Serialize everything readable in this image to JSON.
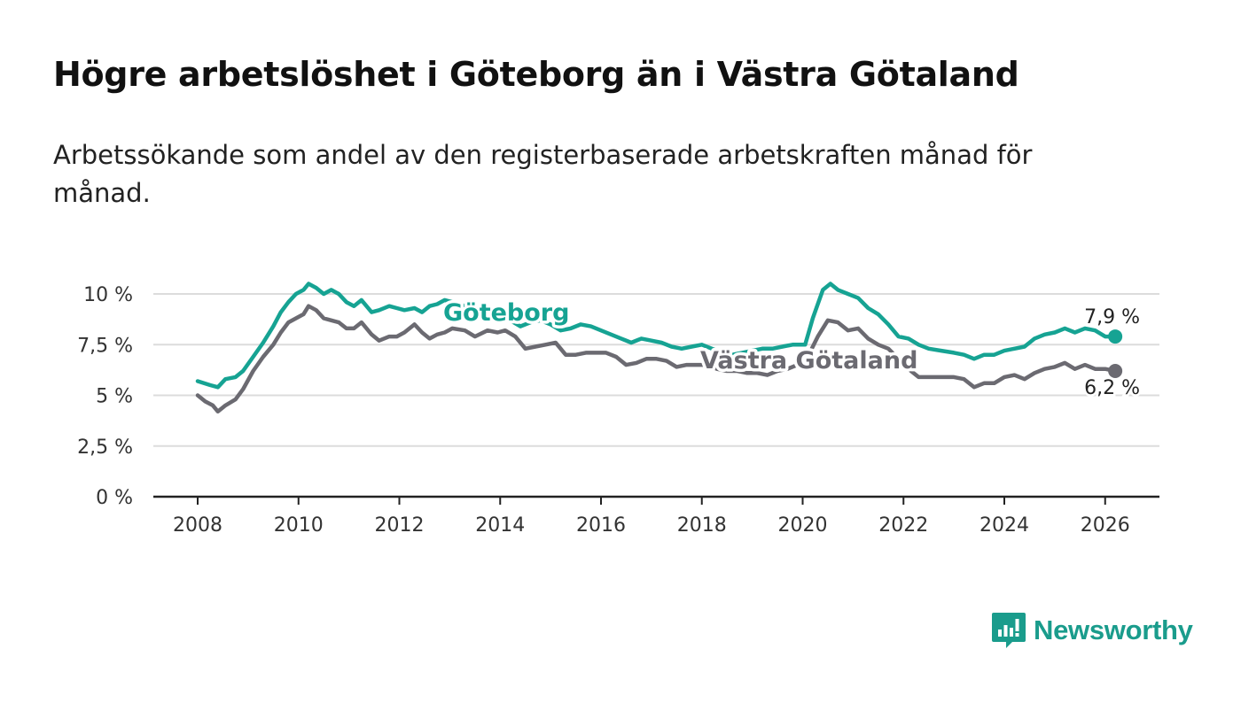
{
  "title": "Högre arbetslöshet i Göteborg än i Västra Götaland",
  "subtitle": "Arbetssökande som andel av den registerbaserade arbetskraften månad för månad.",
  "brand": {
    "name": "Newsworthy",
    "logo_icon": "bar-chart-speech-bubble-icon"
  },
  "colors": {
    "goteborg": "#16a393",
    "vastra": "#6b6a71",
    "grid": "#dcdcdc",
    "axis": "#222222"
  },
  "chart_data": {
    "type": "line",
    "title": "Högre arbetslöshet i Göteborg än i Västra Götaland",
    "xlabel": "",
    "ylabel": "",
    "xlim": [
      2007.6,
      2027.0
    ],
    "ylim": [
      0,
      10
    ],
    "x_ticks": [
      2008,
      2010,
      2012,
      2014,
      2016,
      2018,
      2020,
      2022,
      2024,
      2026
    ],
    "y_ticks": [
      {
        "value": 0,
        "label": "0 %"
      },
      {
        "value": 2.5,
        "label": "2,5 %"
      },
      {
        "value": 5,
        "label": "5 %"
      },
      {
        "value": 7.5,
        "label": "7,5 %"
      },
      {
        "value": 10,
        "label": "10 %"
      }
    ],
    "grid": true,
    "series": [
      {
        "name": "Göteborg",
        "label": "Göteborg",
        "end_label": "7,9 %",
        "points": [
          [
            2008.0,
            5.7
          ],
          [
            2008.25,
            5.5
          ],
          [
            2008.4,
            5.4
          ],
          [
            2008.55,
            5.8
          ],
          [
            2008.75,
            5.9
          ],
          [
            2008.9,
            6.2
          ],
          [
            2009.1,
            6.9
          ],
          [
            2009.3,
            7.6
          ],
          [
            2009.5,
            8.4
          ],
          [
            2009.65,
            9.1
          ],
          [
            2009.8,
            9.6
          ],
          [
            2009.95,
            10.0
          ],
          [
            2010.1,
            10.2
          ],
          [
            2010.2,
            10.5
          ],
          [
            2010.35,
            10.3
          ],
          [
            2010.5,
            10.0
          ],
          [
            2010.65,
            10.2
          ],
          [
            2010.8,
            10.0
          ],
          [
            2010.95,
            9.6
          ],
          [
            2011.1,
            9.4
          ],
          [
            2011.25,
            9.7
          ],
          [
            2011.45,
            9.1
          ],
          [
            2011.6,
            9.2
          ],
          [
            2011.8,
            9.4
          ],
          [
            2011.95,
            9.3
          ],
          [
            2012.1,
            9.2
          ],
          [
            2012.3,
            9.3
          ],
          [
            2012.45,
            9.1
          ],
          [
            2012.6,
            9.4
          ],
          [
            2012.75,
            9.5
          ],
          [
            2012.9,
            9.7
          ],
          [
            2013.05,
            9.6
          ],
          [
            2013.3,
            9.4
          ],
          [
            2013.6,
            9.2
          ],
          [
            2013.9,
            9.0
          ],
          [
            2014.2,
            8.7
          ],
          [
            2014.4,
            8.4
          ],
          [
            2014.6,
            8.6
          ],
          [
            2014.8,
            8.7
          ],
          [
            2015.0,
            8.5
          ],
          [
            2015.2,
            8.2
          ],
          [
            2015.4,
            8.3
          ],
          [
            2015.6,
            8.5
          ],
          [
            2015.8,
            8.4
          ],
          [
            2016.0,
            8.2
          ],
          [
            2016.2,
            8.0
          ],
          [
            2016.4,
            7.8
          ],
          [
            2016.6,
            7.6
          ],
          [
            2016.8,
            7.8
          ],
          [
            2017.0,
            7.7
          ],
          [
            2017.2,
            7.6
          ],
          [
            2017.4,
            7.4
          ],
          [
            2017.6,
            7.3
          ],
          [
            2017.8,
            7.4
          ],
          [
            2018.0,
            7.5
          ],
          [
            2018.2,
            7.3
          ],
          [
            2018.4,
            7.1
          ],
          [
            2018.6,
            7.0
          ],
          [
            2018.8,
            7.1
          ],
          [
            2019.0,
            7.2
          ],
          [
            2019.2,
            7.3
          ],
          [
            2019.4,
            7.3
          ],
          [
            2019.6,
            7.4
          ],
          [
            2019.8,
            7.5
          ],
          [
            2020.05,
            7.5
          ],
          [
            2020.2,
            8.8
          ],
          [
            2020.4,
            10.2
          ],
          [
            2020.55,
            10.5
          ],
          [
            2020.7,
            10.2
          ],
          [
            2020.9,
            10.0
          ],
          [
            2021.1,
            9.8
          ],
          [
            2021.3,
            9.3
          ],
          [
            2021.5,
            9.0
          ],
          [
            2021.7,
            8.5
          ],
          [
            2021.9,
            7.9
          ],
          [
            2022.1,
            7.8
          ],
          [
            2022.3,
            7.5
          ],
          [
            2022.5,
            7.3
          ],
          [
            2022.75,
            7.2
          ],
          [
            2023.0,
            7.1
          ],
          [
            2023.2,
            7.0
          ],
          [
            2023.4,
            6.8
          ],
          [
            2023.6,
            7.0
          ],
          [
            2023.8,
            7.0
          ],
          [
            2024.0,
            7.2
          ],
          [
            2024.2,
            7.3
          ],
          [
            2024.4,
            7.4
          ],
          [
            2024.6,
            7.8
          ],
          [
            2024.8,
            8.0
          ],
          [
            2025.0,
            8.1
          ],
          [
            2025.2,
            8.3
          ],
          [
            2025.4,
            8.1
          ],
          [
            2025.6,
            8.3
          ],
          [
            2025.8,
            8.2
          ],
          [
            2026.0,
            7.9
          ],
          [
            2026.2,
            7.9
          ]
        ]
      },
      {
        "name": "Västra Götaland",
        "label": "Västra Götaland",
        "end_label": "6,2 %",
        "points": [
          [
            2008.0,
            5.0
          ],
          [
            2008.15,
            4.7
          ],
          [
            2008.3,
            4.5
          ],
          [
            2008.4,
            4.2
          ],
          [
            2008.55,
            4.5
          ],
          [
            2008.75,
            4.8
          ],
          [
            2008.9,
            5.3
          ],
          [
            2009.1,
            6.2
          ],
          [
            2009.3,
            6.9
          ],
          [
            2009.5,
            7.5
          ],
          [
            2009.65,
            8.1
          ],
          [
            2009.8,
            8.6
          ],
          [
            2009.95,
            8.8
          ],
          [
            2010.1,
            9.0
          ],
          [
            2010.2,
            9.4
          ],
          [
            2010.35,
            9.2
          ],
          [
            2010.5,
            8.8
          ],
          [
            2010.65,
            8.7
          ],
          [
            2010.8,
            8.6
          ],
          [
            2010.95,
            8.3
          ],
          [
            2011.1,
            8.3
          ],
          [
            2011.25,
            8.6
          ],
          [
            2011.45,
            8.0
          ],
          [
            2011.6,
            7.7
          ],
          [
            2011.8,
            7.9
          ],
          [
            2011.95,
            7.9
          ],
          [
            2012.1,
            8.1
          ],
          [
            2012.3,
            8.5
          ],
          [
            2012.45,
            8.1
          ],
          [
            2012.6,
            7.8
          ],
          [
            2012.75,
            8.0
          ],
          [
            2012.9,
            8.1
          ],
          [
            2013.05,
            8.3
          ],
          [
            2013.3,
            8.2
          ],
          [
            2013.5,
            7.9
          ],
          [
            2013.75,
            8.2
          ],
          [
            2013.95,
            8.1
          ],
          [
            2014.1,
            8.2
          ],
          [
            2014.3,
            7.9
          ],
          [
            2014.5,
            7.3
          ],
          [
            2014.7,
            7.4
          ],
          [
            2014.9,
            7.5
          ],
          [
            2015.1,
            7.6
          ],
          [
            2015.3,
            7.0
          ],
          [
            2015.5,
            7.0
          ],
          [
            2015.7,
            7.1
          ],
          [
            2015.9,
            7.1
          ],
          [
            2016.1,
            7.1
          ],
          [
            2016.3,
            6.9
          ],
          [
            2016.5,
            6.5
          ],
          [
            2016.7,
            6.6
          ],
          [
            2016.9,
            6.8
          ],
          [
            2017.1,
            6.8
          ],
          [
            2017.3,
            6.7
          ],
          [
            2017.5,
            6.4
          ],
          [
            2017.7,
            6.5
          ],
          [
            2017.9,
            6.5
          ],
          [
            2018.1,
            6.5
          ],
          [
            2018.3,
            6.3
          ],
          [
            2018.5,
            6.2
          ],
          [
            2018.7,
            6.2
          ],
          [
            2018.9,
            6.1
          ],
          [
            2019.1,
            6.1
          ],
          [
            2019.3,
            6.0
          ],
          [
            2019.5,
            6.2
          ],
          [
            2019.7,
            6.3
          ],
          [
            2019.9,
            6.5
          ],
          [
            2020.1,
            6.9
          ],
          [
            2020.3,
            7.9
          ],
          [
            2020.5,
            8.7
          ],
          [
            2020.7,
            8.6
          ],
          [
            2020.9,
            8.2
          ],
          [
            2021.1,
            8.3
          ],
          [
            2021.3,
            7.8
          ],
          [
            2021.5,
            7.5
          ],
          [
            2021.7,
            7.3
          ],
          [
            2021.9,
            6.8
          ],
          [
            2022.1,
            6.3
          ],
          [
            2022.3,
            5.9
          ],
          [
            2022.55,
            5.9
          ],
          [
            2022.8,
            5.9
          ],
          [
            2023.0,
            5.9
          ],
          [
            2023.2,
            5.8
          ],
          [
            2023.4,
            5.4
          ],
          [
            2023.6,
            5.6
          ],
          [
            2023.8,
            5.6
          ],
          [
            2024.0,
            5.9
          ],
          [
            2024.2,
            6.0
          ],
          [
            2024.4,
            5.8
          ],
          [
            2024.6,
            6.1
          ],
          [
            2024.8,
            6.3
          ],
          [
            2025.0,
            6.4
          ],
          [
            2025.2,
            6.6
          ],
          [
            2025.4,
            6.3
          ],
          [
            2025.6,
            6.5
          ],
          [
            2025.8,
            6.3
          ],
          [
            2026.0,
            6.3
          ],
          [
            2026.2,
            6.2
          ]
        ]
      }
    ]
  }
}
